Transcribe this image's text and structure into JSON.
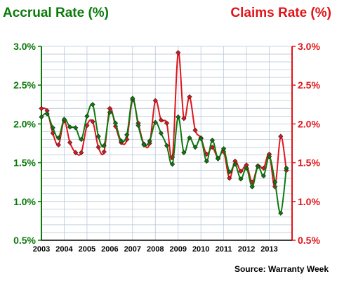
{
  "chart_data": {
    "type": "line",
    "title_left": "Accrual Rate (%)",
    "title_right": "Claims Rate (%)",
    "source": "Source: Warranty Week",
    "colors": {
      "accrual": "#0b7a0b",
      "claims": "#e0151a",
      "grid": "#b8c9da"
    },
    "x_tick_labels": [
      "2003",
      "2004",
      "2005",
      "2006",
      "2007",
      "2008",
      "2009",
      "2010",
      "2011",
      "2012",
      "2013"
    ],
    "x_range": [
      2003,
      2014
    ],
    "ylim": [
      0.5,
      3.0
    ],
    "y_ticks_left": [
      "3.0%",
      "2.5%",
      "2.0%",
      "1.5%",
      "1.0%",
      "0.5%"
    ],
    "y_ticks_right": [
      "3.0%",
      "2.5%",
      "2.0%",
      "1.5%",
      "1.0%",
      "0.5%"
    ],
    "grid": true,
    "series": [
      {
        "key": "accrual",
        "name": "Accrual Rate (%)",
        "axis": "left",
        "x": [
          2003.0,
          2003.25,
          2003.5,
          2003.75,
          2004.0,
          2004.25,
          2004.5,
          2004.75,
          2005.0,
          2005.25,
          2005.5,
          2005.75,
          2006.0,
          2006.25,
          2006.5,
          2006.75,
          2007.0,
          2007.25,
          2007.5,
          2007.75,
          2008.0,
          2008.25,
          2008.5,
          2008.75,
          2009.0,
          2009.25,
          2009.5,
          2009.75,
          2010.0,
          2010.25,
          2010.5,
          2010.75,
          2011.0,
          2011.25,
          2011.5,
          2011.75,
          2012.0,
          2012.25,
          2012.5,
          2012.75,
          2013.0,
          2013.25,
          2013.5,
          2013.75
        ],
        "values": [
          2.09,
          2.13,
          1.95,
          1.82,
          2.06,
          1.96,
          1.95,
          1.8,
          2.1,
          2.25,
          1.84,
          1.72,
          2.15,
          2.01,
          1.78,
          1.86,
          2.33,
          1.98,
          1.73,
          1.78,
          2.02,
          1.88,
          1.72,
          1.48,
          2.09,
          1.63,
          1.82,
          1.7,
          1.81,
          1.52,
          1.79,
          1.55,
          1.68,
          1.38,
          1.48,
          1.29,
          1.43,
          1.19,
          1.45,
          1.33,
          1.58,
          1.25,
          0.85,
          1.43
        ]
      },
      {
        "key": "claims",
        "name": "Claims Rate (%)",
        "axis": "right",
        "x": [
          2003.0,
          2003.25,
          2003.5,
          2003.75,
          2004.0,
          2004.25,
          2004.5,
          2004.75,
          2005.0,
          2005.25,
          2005.5,
          2005.75,
          2006.0,
          2006.25,
          2006.5,
          2006.75,
          2007.0,
          2007.25,
          2007.5,
          2007.75,
          2008.0,
          2008.25,
          2008.5,
          2008.75,
          2009.0,
          2009.25,
          2009.5,
          2009.75,
          2010.0,
          2010.25,
          2010.5,
          2010.75,
          2011.0,
          2011.25,
          2011.5,
          2011.75,
          2012.0,
          2012.25,
          2012.5,
          2012.75,
          2013.0,
          2013.25,
          2013.5,
          2013.75
        ],
        "values": [
          2.2,
          2.17,
          1.88,
          1.73,
          2.04,
          1.76,
          1.63,
          1.63,
          1.98,
          2.03,
          1.7,
          1.64,
          2.2,
          1.97,
          1.76,
          1.8,
          2.31,
          2.01,
          1.74,
          1.75,
          2.3,
          2.05,
          2.01,
          1.57,
          2.92,
          2.07,
          2.35,
          1.92,
          1.82,
          1.61,
          1.7,
          1.56,
          1.64,
          1.3,
          1.52,
          1.39,
          1.47,
          1.25,
          1.46,
          1.43,
          1.61,
          1.19,
          1.84,
          1.4
        ]
      }
    ]
  }
}
